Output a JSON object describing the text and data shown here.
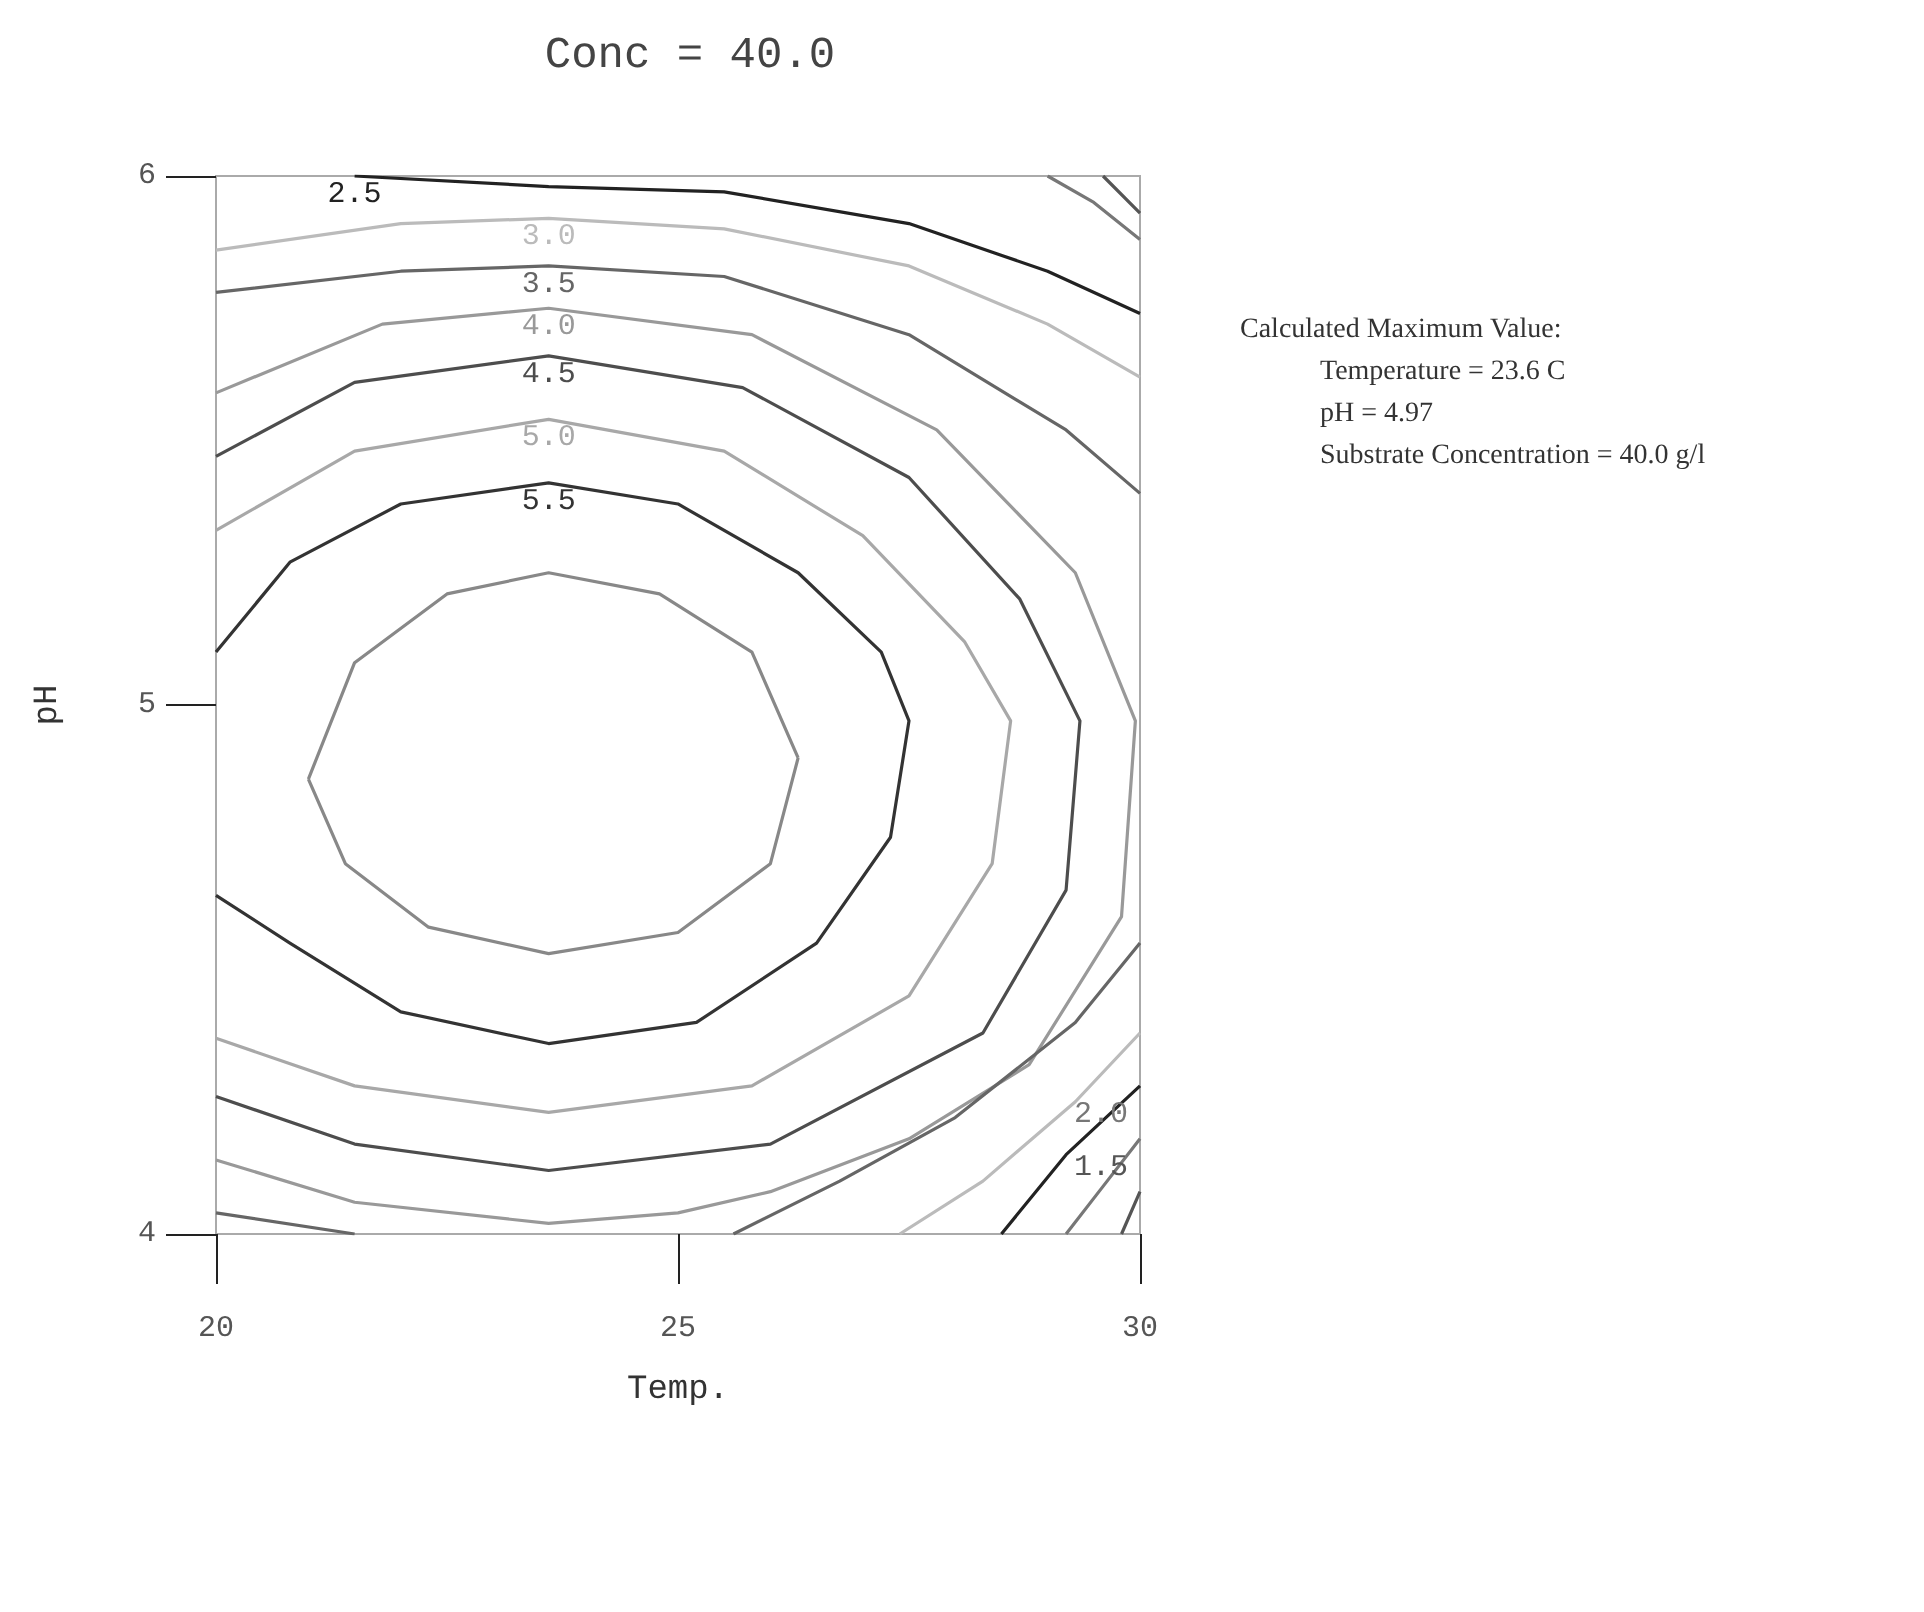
{
  "chart_data": {
    "type": "line",
    "title": "Conc = 40.0",
    "xlabel": "Temp.",
    "ylabel": "pH",
    "xlim": [
      20,
      30
    ],
    "xticks": [
      20,
      25,
      30
    ],
    "ylim": [
      4,
      6
    ],
    "yticks": [
      4,
      5,
      6
    ],
    "grid": false,
    "legend": false,
    "marker": "none",
    "annotations": [
      "Calculated Maximum Value:",
      "Temperature = 23.6 C",
      "pH = 4.97",
      "Substrate Concentration = 40.0 g/l"
    ],
    "series": [
      {
        "color": "#888888",
        "x": [
          21.0,
          21.5,
          22.5,
          23.6,
          24.8,
          25.8,
          26.3,
          null,
          26.3,
          26.0,
          25.0,
          23.6,
          22.3,
          21.4,
          21.0
        ],
        "values": [
          4.86,
          5.08,
          5.21,
          5.25,
          5.21,
          5.1,
          4.9,
          null,
          4.9,
          4.7,
          4.57,
          4.53,
          4.58,
          4.7,
          4.86
        ]
      },
      {
        "name": "5.5",
        "color": "#333333",
        "x": [
          20,
          20.8,
          22,
          23.6,
          25,
          26.3,
          27.2,
          27.5,
          27.3,
          26.5,
          25.2,
          23.6,
          22,
          20.8,
          20
        ],
        "values": [
          5.1,
          5.27,
          5.38,
          5.42,
          5.38,
          5.25,
          5.1,
          4.97,
          4.75,
          4.55,
          4.4,
          4.36,
          4.42,
          4.55,
          4.64
        ]
      },
      {
        "name": "5.0",
        "color": "#a8a8a8",
        "x": [
          20,
          21.5,
          23.6,
          25.5,
          27,
          28.1,
          28.6,
          28.4,
          27.5,
          25.8,
          23.6,
          21.5,
          20
        ],
        "values": [
          5.33,
          5.48,
          5.54,
          5.48,
          5.32,
          5.12,
          4.97,
          4.7,
          4.45,
          4.28,
          4.23,
          4.28,
          4.37
        ]
      },
      {
        "name": "4.5",
        "color": "#4d4d4d",
        "x": [
          20,
          21.5,
          23.6,
          25.7,
          27.5,
          28.7,
          29.35,
          29.2,
          28.3,
          26,
          23.6,
          21.5,
          20
        ],
        "values": [
          5.47,
          5.61,
          5.66,
          5.6,
          5.43,
          5.2,
          4.97,
          4.65,
          4.38,
          4.17,
          4.12,
          4.17,
          4.26
        ]
      },
      {
        "name": "4.0",
        "color": "#999999",
        "x": [
          20,
          21.8,
          23.6,
          25.8,
          27.8,
          29.3,
          29.95,
          29.8,
          28.8,
          27.5,
          26,
          25,
          23.6,
          21.5,
          20
        ],
        "values": [
          5.59,
          5.72,
          5.75,
          5.7,
          5.52,
          5.25,
          4.97,
          4.6,
          4.32,
          4.18,
          4.08,
          4.04,
          4.02,
          4.06,
          4.14
        ]
      },
      {
        "name": "3.5",
        "color": "#666666",
        "x": [
          20,
          22,
          23.6,
          25.5,
          27.5,
          29.2,
          30,
          null,
          20,
          21.5,
          null,
          25.6,
          26.75,
          28,
          29.3,
          30
        ],
        "values": [
          5.78,
          5.82,
          5.83,
          5.81,
          5.7,
          5.52,
          5.4,
          null,
          4.04,
          4.0,
          null,
          4.0,
          4.1,
          4.22,
          4.4,
          4.55
        ]
      },
      {
        "name": "3.0",
        "color": "#bbbbbb",
        "x": [
          20,
          22,
          23.6,
          25.5,
          27.5,
          29,
          30,
          null,
          27.4,
          28.3,
          29.3,
          30
        ],
        "values": [
          5.86,
          5.91,
          5.92,
          5.9,
          5.83,
          5.72,
          5.62,
          null,
          4.0,
          4.1,
          4.25,
          4.38
        ]
      },
      {
        "name": "2.5",
        "color": "#222222",
        "x": [
          21.5,
          23.6,
          25.5,
          27.5,
          29,
          30,
          null,
          28.5,
          29.2,
          30
        ],
        "values": [
          6.0,
          5.98,
          5.97,
          5.91,
          5.82,
          5.74,
          null,
          4.0,
          4.15,
          4.28
        ]
      },
      {
        "name": "2.0",
        "color": "#777777",
        "x": [
          29,
          29.5,
          30,
          null,
          29.2,
          29.6,
          30
        ],
        "values": [
          6.0,
          5.95,
          5.88,
          null,
          4.0,
          4.09,
          4.18
        ]
      },
      {
        "name": "1.5",
        "color": "#555555",
        "x": [
          29.6,
          30,
          null,
          29.8,
          30
        ],
        "values": [
          6.0,
          5.93,
          null,
          4.0,
          4.08
        ]
      }
    ]
  }
}
